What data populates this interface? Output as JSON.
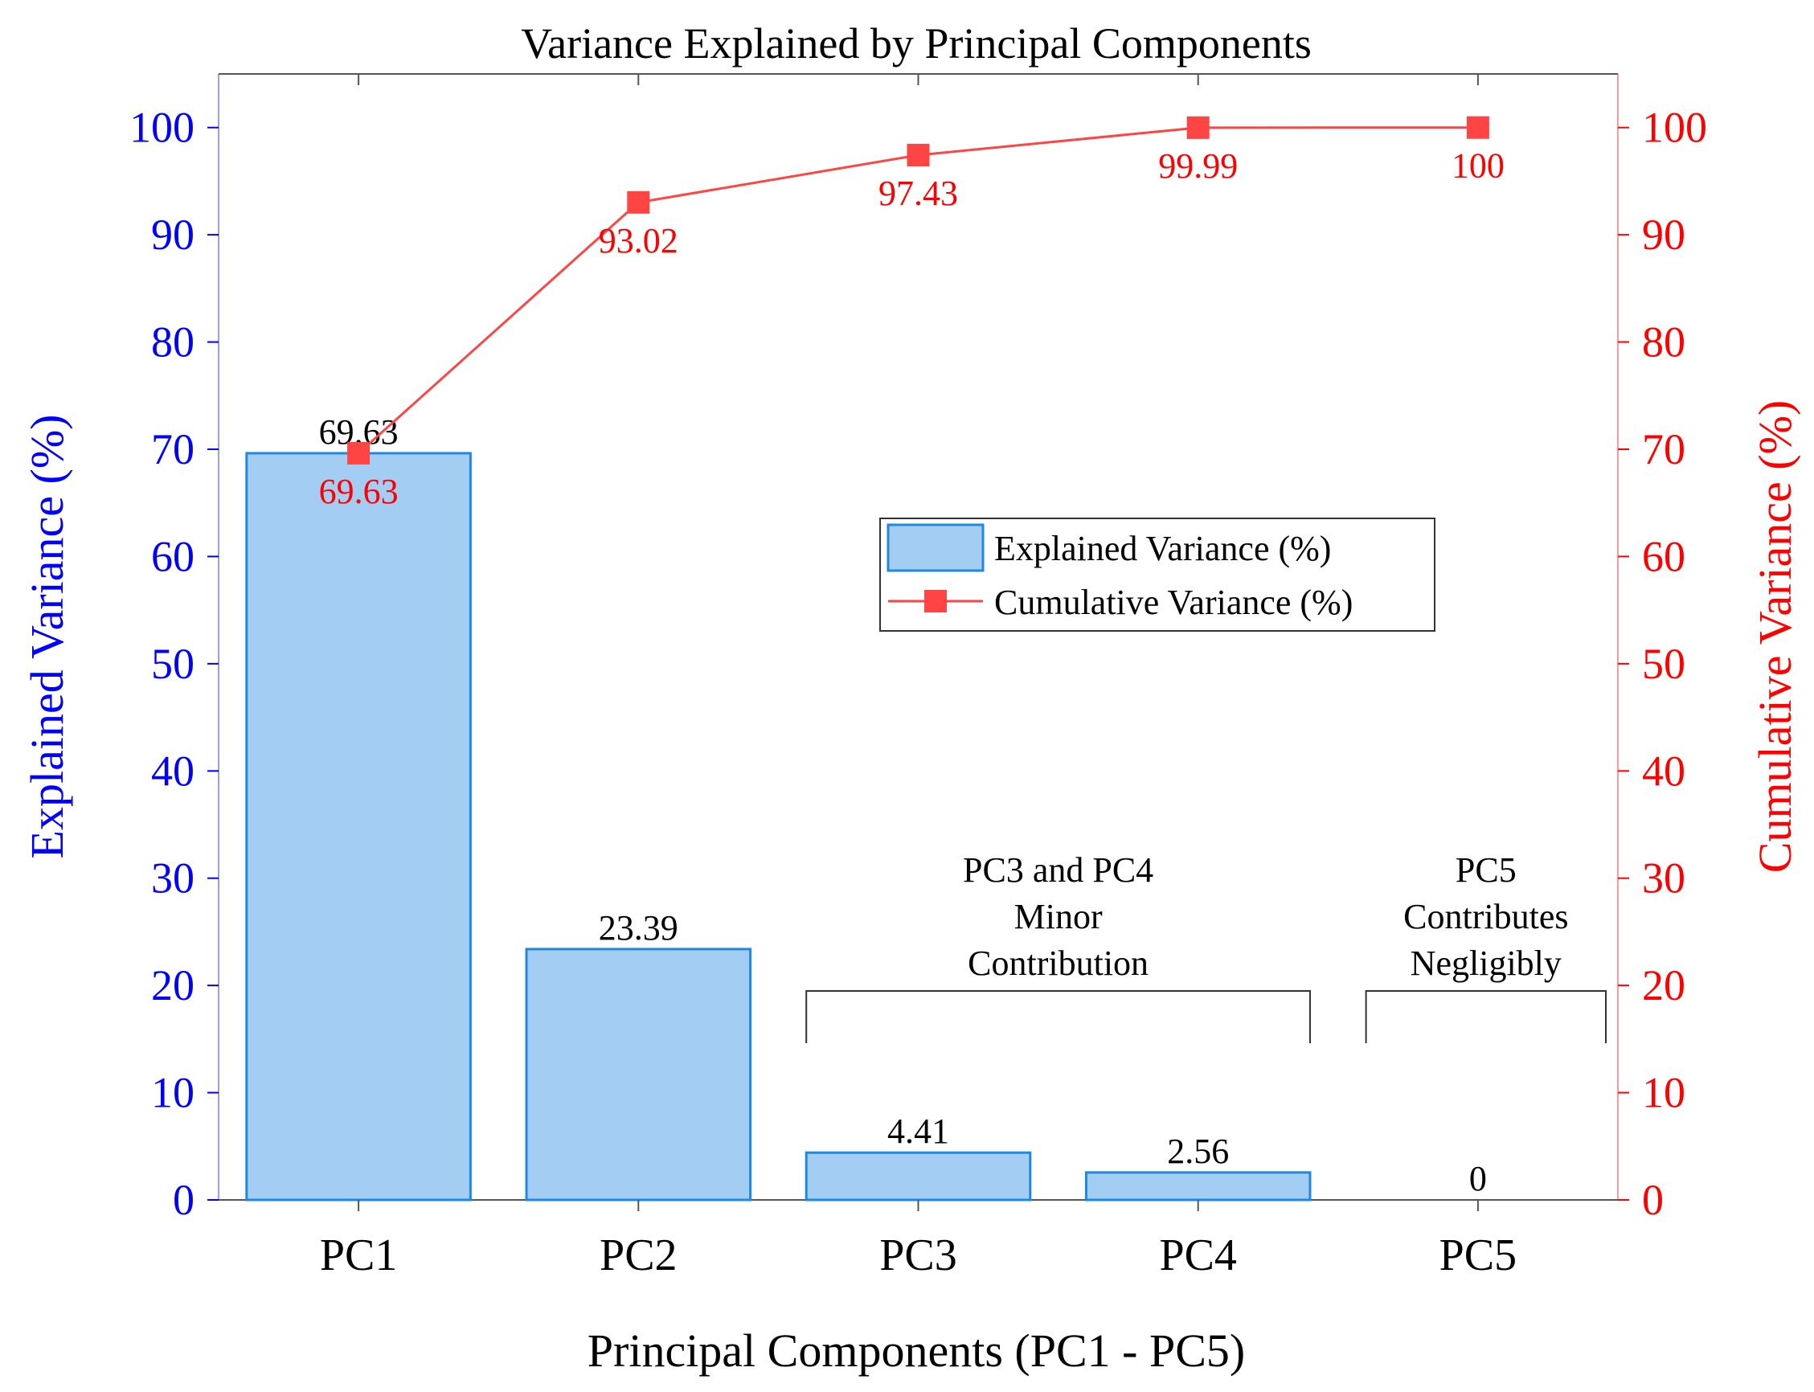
{
  "chart_data": {
    "type": "bar",
    "title": "Variance Explained by Principal Components",
    "xlabel": "Principal Components (PC1 - PC5)",
    "ylabel_left": "Explained Variance (%)",
    "ylabel_right": "Cumulative Variance (%)",
    "categories": [
      "PC1",
      "PC2",
      "PC3",
      "PC4",
      "PC5"
    ],
    "ylim": [
      0,
      105
    ],
    "yticks": [
      0,
      10,
      20,
      30,
      40,
      50,
      60,
      70,
      80,
      90,
      100
    ],
    "series": [
      {
        "name": "Explained Variance (%)",
        "kind": "bar",
        "axis": "left",
        "values": [
          69.63,
          23.39,
          4.41,
          2.56,
          0
        ],
        "labels": [
          "69.63",
          "23.39",
          "4.41",
          "2.56",
          "0"
        ],
        "color": "#a3cdf3",
        "edge_color": "#1e88e5"
      },
      {
        "name": "Cumulative Variance (%)",
        "kind": "line",
        "axis": "right",
        "values": [
          69.63,
          93.02,
          97.43,
          99.99,
          100
        ],
        "labels": [
          "69.63",
          "93.02",
          "97.43",
          "99.99",
          "100"
        ],
        "color": "#ff4444",
        "marker": "square"
      }
    ],
    "annotations": [
      {
        "text_lines": [
          "PC3 and PC4",
          "Minor",
          "Contribution"
        ],
        "span": [
          "PC3",
          "PC4"
        ]
      },
      {
        "text_lines": [
          "PC5",
          "Contributes",
          "Negligibly"
        ],
        "span": [
          "PC5",
          "PC5"
        ]
      }
    ],
    "legend_position": "center-right",
    "left_axis_color": "#0000ff",
    "right_axis_color": "#ff0000",
    "grid": false
  }
}
